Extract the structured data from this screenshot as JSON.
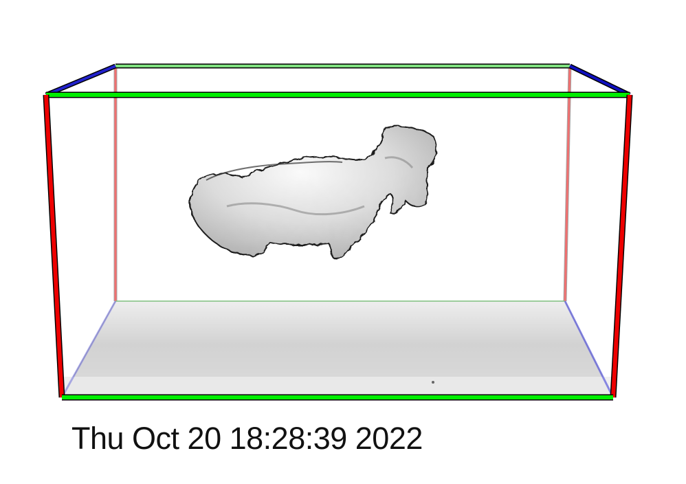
{
  "viewer": {
    "timestamp": "Thu Oct 20 18:28:39 2022",
    "axis_colors": {
      "vertical_edges": "#ff0000",
      "width_edges": "#00ff00",
      "depth_edges": "#0000ff"
    },
    "floor_color": "#d8d8d8",
    "surface_color": "#e6e6e6",
    "background": "#ffffff"
  }
}
